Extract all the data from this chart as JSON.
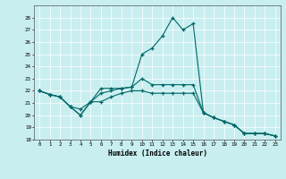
{
  "background_color": "#c8eef0",
  "line_color": "#006666",
  "xlabel": "Humidex (Indice chaleur)",
  "xlim": [
    -0.5,
    23.5
  ],
  "ylim": [
    18,
    29
  ],
  "yticks": [
    18,
    19,
    20,
    21,
    22,
    23,
    24,
    25,
    26,
    27,
    28
  ],
  "xticks": [
    0,
    1,
    2,
    3,
    4,
    5,
    6,
    7,
    8,
    9,
    10,
    11,
    12,
    13,
    14,
    15,
    16,
    17,
    18,
    19,
    20,
    21,
    22,
    23
  ],
  "x": [
    0,
    1,
    2,
    3,
    4,
    5,
    6,
    7,
    8,
    9,
    10,
    11,
    12,
    13,
    14,
    15,
    16,
    17,
    18,
    19,
    20,
    21,
    22,
    23
  ],
  "line_top": [
    22.0,
    21.7,
    21.5,
    20.7,
    20.0,
    21.1,
    22.2,
    22.2,
    22.2,
    22.3,
    25.0,
    25.5,
    26.5,
    28.0,
    27.0,
    27.5,
    20.2,
    19.8,
    19.5,
    19.2,
    18.5,
    18.5,
    18.5,
    18.3
  ],
  "line_mid": [
    22.0,
    21.7,
    21.5,
    20.7,
    20.5,
    21.1,
    21.8,
    22.0,
    22.2,
    22.3,
    23.0,
    22.5,
    22.5,
    22.5,
    22.5,
    22.5,
    20.2,
    19.8,
    19.5,
    19.2,
    18.5,
    18.5,
    18.5,
    18.3
  ],
  "line_bot": [
    22.0,
    21.7,
    21.5,
    20.7,
    20.0,
    21.1,
    21.1,
    21.5,
    21.8,
    22.0,
    22.0,
    21.8,
    21.8,
    21.8,
    21.8,
    21.8,
    20.2,
    19.8,
    19.5,
    19.2,
    18.5,
    18.5,
    18.5,
    18.3
  ]
}
